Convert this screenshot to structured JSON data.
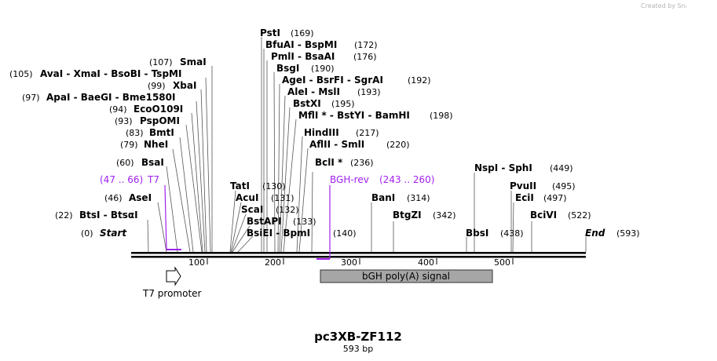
{
  "credit": "Created by SnapGene",
  "title": "pc3XB-ZF112",
  "subtitle": "593 bp",
  "colors": {
    "primer": "#a020f0",
    "feature_fill": "#a6a6a6",
    "line": "#555555"
  },
  "sites": [
    {
      "name": "PstI",
      "pos": "(169)"
    },
    {
      "name": "BfuAI  - BspMI",
      "pos": "(172)"
    },
    {
      "name": "PmlI  - BsaAI",
      "pos": "(176)"
    },
    {
      "name": "BsgI",
      "pos": "(190)"
    },
    {
      "name": "AgeI  - BsrFI  - SgrAI",
      "pos": "(192)"
    },
    {
      "name": "AleI  - MslI",
      "pos": "(193)"
    },
    {
      "name": "BstXI",
      "pos": "(195)"
    },
    {
      "name": "MflI *  - BstYI  - BamHI",
      "pos": "(198)"
    },
    {
      "name": "HindIII",
      "pos": "(217)"
    },
    {
      "name": "AflII  - SmlI",
      "pos": "(220)"
    },
    {
      "name": "BclI *",
      "pos": "(236)"
    },
    {
      "name": "TatI",
      "pos": "(130)"
    },
    {
      "name": "AcuI",
      "pos": "(131)"
    },
    {
      "name": "ScaI",
      "pos": "(132)"
    },
    {
      "name": "BstAPI",
      "pos": "(133)"
    },
    {
      "name": "BsiEI  - BpmI",
      "pos": "(140)"
    },
    {
      "name": "SmaI",
      "pos": "(107)"
    },
    {
      "name": "AvaI  - XmaI  - BsoBI  - TspMI",
      "pos": "(105)"
    },
    {
      "name": "XbaI",
      "pos": "(99)"
    },
    {
      "name": "ApaI  - BaeGI  - Bme1580I",
      "pos": "(97)"
    },
    {
      "name": "EcoO109I",
      "pos": "(94)"
    },
    {
      "name": "PspOMI",
      "pos": "(93)"
    },
    {
      "name": "BmtI",
      "pos": "(83)"
    },
    {
      "name": "NheI",
      "pos": "(79)"
    },
    {
      "name": "BsaI",
      "pos": "(60)"
    },
    {
      "name": "AseI",
      "pos": "(46)"
    },
    {
      "name": "BtsI  - BtsαI",
      "pos": "(22)"
    },
    {
      "name": "Start",
      "pos": "(0)"
    },
    {
      "name": "BanI",
      "pos": "(314)"
    },
    {
      "name": "BtgZI",
      "pos": "(342)"
    },
    {
      "name": "NspI  - SphI",
      "pos": "(449)"
    },
    {
      "name": "PvuII",
      "pos": "(495)"
    },
    {
      "name": "EciI",
      "pos": "(497)"
    },
    {
      "name": "BciVI",
      "pos": "(522)"
    },
    {
      "name": "BbsI",
      "pos": "(438)"
    },
    {
      "name": "End",
      "pos": "(593)"
    }
  ],
  "primers": [
    {
      "name": "T7",
      "range": "(47 .. 66)"
    },
    {
      "name": "BGH-rev",
      "range": "(243 .. 260)"
    }
  ],
  "ruler": [
    "100",
    "200",
    "300",
    "400",
    "500"
  ],
  "features": [
    {
      "name": "T7 promoter",
      "start": 47,
      "end": 66
    },
    {
      "name": "bGH poly(A) signal",
      "start": 248,
      "end": 472
    }
  ],
  "sequence_length": 593
}
